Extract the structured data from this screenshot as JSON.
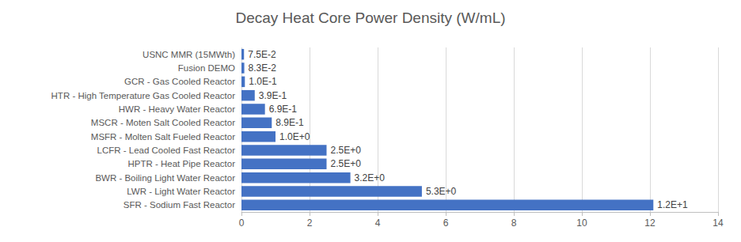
{
  "chart_data": {
    "type": "bar",
    "title": "Decay Heat Core Power Density (W/mL)",
    "orientation": "horizontal",
    "categories": [
      "USNC MMR (15MWth)",
      "Fusion DEMO",
      "GCR - Gas Cooled Reactor",
      "HTR - High Temperature Gas Cooled Reactor",
      "HWR - Heavy Water Reactor",
      "MSCR - Moten Salt Cooled Reactor",
      "MSFR - Molten Salt Fueled Reactor",
      "LCFR - Lead Cooled Fast Reactor",
      "HPTR - Heat Pipe Reactor",
      "BWR - Boiling Light Water Reactor",
      "LWR - Light Water Reactor",
      "SFR - Sodium Fast Reactor"
    ],
    "values": [
      0.075,
      0.083,
      0.1,
      0.39,
      0.69,
      0.89,
      1.0,
      2.5,
      2.5,
      3.2,
      5.3,
      12.1
    ],
    "value_labels": [
      "7.5E-2",
      "8.3E-2",
      "1.0E-1",
      "3.9E-1",
      "6.9E-1",
      "8.9E-1",
      "1.0E+0",
      "2.5E+0",
      "2.5E+0",
      "3.2E+0",
      "5.3E+0",
      "1.2E+1"
    ],
    "data_labels": true,
    "color": "#4472c4",
    "xlim": [
      0,
      14
    ],
    "xticks": [
      0,
      2,
      4,
      6,
      8,
      10,
      12,
      14
    ],
    "grid": true
  }
}
